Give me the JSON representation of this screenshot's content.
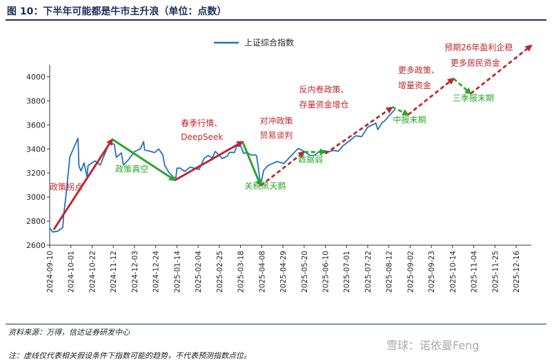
{
  "title": "图 10：下半年可能都是牛市主升浪（单位：点数）",
  "source": "资料来源：万得，信达证券研发中心",
  "note": "注：虚线仅代表相关假设条件下指数可能的趋势，不代表预测指数点位。",
  "watermark": "雪球：诺依曼Feng",
  "colors": {
    "line": "#1f6fc4",
    "red": "#c0262d",
    "green": "#2aa52a",
    "title": "#1f2d5a"
  },
  "chart_data": {
    "type": "line",
    "legend": {
      "label": "上证综合指数",
      "position": "top-center"
    },
    "ylim": [
      2600,
      4100
    ],
    "yticks": [
      2600,
      2800,
      3000,
      3200,
      3400,
      3600,
      3800,
      4000
    ],
    "xlim": [
      "2024-09-10",
      "2025-12-31"
    ],
    "xticks": [
      "2024-09-10",
      "2024-10-01",
      "2024-10-22",
      "2024-11-12",
      "2024-12-03",
      "2024-12-24",
      "2025-01-14",
      "2025-02-04",
      "2025-02-25",
      "2025-03-18",
      "2025-04-08",
      "2025-04-29",
      "2025-05-20",
      "2025-06-10",
      "2025-07-01",
      "2025-07-22",
      "2025-08-12",
      "2025-09-02",
      "2025-09-23",
      "2025-10-14",
      "2025-11-04",
      "2025-11-25",
      "2025-12-16"
    ],
    "series": [
      {
        "name": "上证综合指数",
        "points": [
          [
            "2024-09-10",
            2745
          ],
          [
            "2024-09-13",
            2710
          ],
          [
            "2024-09-18",
            2717
          ],
          [
            "2024-09-23",
            2748
          ],
          [
            "2024-09-24",
            2863
          ],
          [
            "2024-09-26",
            3000
          ],
          [
            "2024-09-27",
            3087
          ],
          [
            "2024-09-30",
            3336
          ],
          [
            "2024-10-08",
            3489
          ],
          [
            "2024-10-09",
            3258
          ],
          [
            "2024-10-11",
            3217
          ],
          [
            "2024-10-14",
            3284
          ],
          [
            "2024-10-17",
            3169
          ],
          [
            "2024-10-18",
            3261
          ],
          [
            "2024-10-22",
            3285
          ],
          [
            "2024-10-25",
            3300
          ],
          [
            "2024-10-30",
            3266
          ],
          [
            "2024-11-05",
            3387
          ],
          [
            "2024-11-08",
            3452
          ],
          [
            "2024-11-13",
            3439
          ],
          [
            "2024-11-15",
            3330
          ],
          [
            "2024-11-20",
            3367
          ],
          [
            "2024-11-22",
            3267
          ],
          [
            "2024-11-27",
            3310
          ],
          [
            "2024-12-03",
            3378
          ],
          [
            "2024-12-09",
            3402
          ],
          [
            "2024-12-10",
            3422
          ],
          [
            "2024-12-12",
            3461
          ],
          [
            "2024-12-13",
            3392
          ],
          [
            "2024-12-18",
            3382
          ],
          [
            "2024-12-23",
            3370
          ],
          [
            "2024-12-27",
            3400
          ],
          [
            "2024-12-31",
            3351
          ],
          [
            "2025-01-02",
            3262
          ],
          [
            "2025-01-06",
            3206
          ],
          [
            "2025-01-10",
            3168
          ],
          [
            "2025-01-13",
            3160
          ],
          [
            "2025-01-14",
            3240
          ],
          [
            "2025-01-17",
            3241
          ],
          [
            "2025-01-22",
            3213
          ],
          [
            "2025-01-27",
            3250
          ],
          [
            "2025-02-05",
            3229
          ],
          [
            "2025-02-10",
            3322
          ],
          [
            "2025-02-14",
            3346
          ],
          [
            "2025-02-18",
            3324
          ],
          [
            "2025-02-21",
            3379
          ],
          [
            "2025-02-25",
            3346
          ],
          [
            "2025-02-28",
            3320
          ],
          [
            "2025-03-05",
            3342
          ],
          [
            "2025-03-07",
            3372
          ],
          [
            "2025-03-12",
            3371
          ],
          [
            "2025-03-14",
            3419
          ],
          [
            "2025-03-18",
            3429
          ],
          [
            "2025-03-21",
            3364
          ],
          [
            "2025-03-25",
            3369
          ],
          [
            "2025-03-28",
            3351
          ],
          [
            "2025-04-02",
            3350
          ],
          [
            "2025-04-03",
            3342
          ],
          [
            "2025-04-07",
            3096
          ],
          [
            "2025-04-08",
            3145
          ],
          [
            "2025-04-10",
            3223
          ],
          [
            "2025-04-14",
            3262
          ],
          [
            "2025-04-18",
            3276
          ],
          [
            "2025-04-23",
            3296
          ],
          [
            "2025-04-30",
            3279
          ],
          [
            "2025-05-07",
            3342
          ],
          [
            "2025-05-14",
            3404
          ],
          [
            "2025-05-20",
            3380
          ],
          [
            "2025-05-26",
            3346
          ],
          [
            "2025-05-30",
            3347
          ],
          [
            "2025-06-05",
            3384
          ],
          [
            "2025-06-10",
            3385
          ],
          [
            "2025-06-13",
            3377
          ],
          [
            "2025-06-18",
            3388
          ],
          [
            "2025-06-23",
            3381
          ],
          [
            "2025-06-27",
            3424
          ],
          [
            "2025-07-03",
            3461
          ],
          [
            "2025-07-10",
            3509
          ],
          [
            "2025-07-16",
            3503
          ],
          [
            "2025-07-22",
            3582
          ],
          [
            "2025-07-25",
            3593
          ],
          [
            "2025-07-30",
            3615
          ],
          [
            "2025-08-01",
            3560
          ],
          [
            "2025-08-05",
            3617
          ],
          [
            "2025-08-08",
            3635
          ],
          [
            "2025-08-13",
            3683
          ],
          [
            "2025-08-18",
            3728
          ]
        ]
      }
    ],
    "trend_arrows": [
      {
        "type": "solid",
        "color": "red",
        "from": [
          "2024-09-14",
          2730
        ],
        "to": [
          "2024-11-11",
          3480
        ]
      },
      {
        "type": "solid",
        "color": "green",
        "from": [
          "2024-11-11",
          3480
        ],
        "to": [
          "2025-01-12",
          3140
        ]
      },
      {
        "type": "solid",
        "color": "red",
        "from": [
          "2025-01-12",
          3140
        ],
        "to": [
          "2025-03-20",
          3460
        ]
      },
      {
        "type": "solid",
        "color": "green",
        "from": [
          "2025-03-20",
          3460
        ],
        "to": [
          "2025-04-07",
          3095
        ]
      },
      {
        "type": "dashed",
        "color": "red",
        "from": [
          "2025-04-07",
          3095
        ],
        "to": [
          "2025-05-20",
          3375
        ]
      },
      {
        "type": "dashed",
        "color": "green",
        "from": [
          "2025-05-20",
          3375
        ],
        "to": [
          "2025-06-10",
          3375
        ]
      },
      {
        "type": "dashed",
        "color": "red",
        "from": [
          "2025-06-10",
          3360
        ],
        "to": [
          "2025-08-15",
          3745
        ]
      },
      {
        "type": "dashed",
        "color": "green",
        "from": [
          "2025-08-15",
          3750
        ],
        "to": [
          "2025-08-31",
          3685
        ]
      },
      {
        "type": "dashed",
        "color": "red",
        "from": [
          "2025-08-31",
          3685
        ],
        "to": [
          "2025-10-15",
          3985
        ]
      },
      {
        "type": "dashed",
        "color": "green",
        "from": [
          "2025-10-15",
          3985
        ],
        "to": [
          "2025-11-01",
          3860
        ]
      },
      {
        "type": "dashed",
        "color": "red",
        "from": [
          "2025-11-01",
          3860
        ],
        "to": [
          "2025-12-31",
          4260
        ]
      }
    ],
    "annotations": [
      {
        "text": "政策拐点",
        "color": "red",
        "at": [
          "2024-09-10",
          3060
        ]
      },
      {
        "text": "政策真空",
        "color": "green",
        "at": [
          "2024-11-14",
          3210
        ]
      },
      {
        "text": "春季行情、",
        "color": "red",
        "at": [
          "2025-01-18",
          3590
        ]
      },
      {
        "text": "DeepSeek",
        "color": "red",
        "at": [
          "2025-01-18",
          3475
        ]
      },
      {
        "text": "关税黑天鹅",
        "color": "green",
        "at": [
          "2025-03-22",
          3070
        ]
      },
      {
        "text": "对冲政策",
        "color": "red",
        "at": [
          "2025-04-06",
          3610
        ]
      },
      {
        "text": "贸易谈判",
        "color": "red",
        "at": [
          "2025-04-06",
          3490
        ]
      },
      {
        "text": "数据弱",
        "color": "green",
        "at": [
          "2025-05-14",
          3290
        ]
      },
      {
        "text": "反内卷政策、",
        "color": "red",
        "at": [
          "2025-05-15",
          3870
        ]
      },
      {
        "text": "存量资金增仓",
        "color": "red",
        "at": [
          "2025-05-15",
          3745
        ]
      },
      {
        "text": "中报末期",
        "color": "green",
        "at": [
          "2025-08-16",
          3620
        ]
      },
      {
        "text": "更多政策、",
        "color": "red",
        "at": [
          "2025-08-21",
          4030
        ]
      },
      {
        "text": "增量资金",
        "color": "red",
        "at": [
          "2025-08-21",
          3905
        ]
      },
      {
        "text": "三季报末期",
        "color": "green",
        "at": [
          "2025-10-14",
          3800
        ]
      },
      {
        "text": "预期26年盈利企稳",
        "color": "red",
        "at": [
          "2025-10-06",
          4220
        ]
      },
      {
        "text": "更多居民资金",
        "color": "red",
        "at": [
          "2025-10-12",
          4090
        ]
      }
    ]
  }
}
